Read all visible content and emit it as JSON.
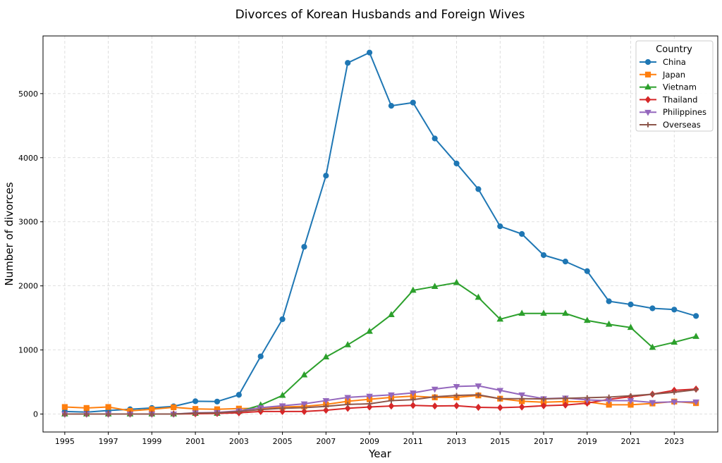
{
  "chart_data": {
    "type": "line",
    "title": "Divorces of Korean Husbands and Foreign Wives",
    "xlabel": "Year",
    "ylabel": "Number of divorces",
    "xlim": [
      1994,
      2025
    ],
    "ylim": [
      -280,
      5900
    ],
    "x_ticks": [
      1995,
      1997,
      1999,
      2001,
      2003,
      2005,
      2007,
      2009,
      2011,
      2013,
      2015,
      2017,
      2019,
      2021,
      2023
    ],
    "y_ticks": [
      0,
      1000,
      2000,
      3000,
      4000,
      5000
    ],
    "grid": true,
    "legend": {
      "title": "Country",
      "placement": "top-right"
    },
    "x": [
      1995,
      1996,
      1997,
      1998,
      1999,
      2000,
      2001,
      2002,
      2003,
      2004,
      2005,
      2006,
      2007,
      2008,
      2009,
      2010,
      2011,
      2012,
      2013,
      2014,
      2015,
      2016,
      2017,
      2018,
      2019,
      2020,
      2021,
      2022,
      2023,
      2024
    ],
    "series": [
      {
        "name": "China",
        "color": "#1f77b4",
        "marker": "circle",
        "values": [
          40,
          30,
          55,
          75,
          95,
          120,
          200,
          195,
          300,
          900,
          1480,
          2610,
          3720,
          5480,
          5640,
          4810,
          4860,
          4300,
          3910,
          3510,
          2930,
          2810,
          2480,
          2380,
          2230,
          1760,
          1710,
          1650,
          1630,
          1530
        ]
      },
      {
        "name": "Japan",
        "color": "#ff7f0e",
        "marker": "square",
        "values": [
          110,
          95,
          110,
          50,
          75,
          105,
          80,
          75,
          85,
          90,
          110,
          120,
          150,
          200,
          230,
          260,
          280,
          260,
          260,
          290,
          240,
          200,
          185,
          195,
          190,
          145,
          145,
          165,
          195,
          170
        ]
      },
      {
        "name": "Vietnam",
        "color": "#2ca02c",
        "marker": "triangle-up",
        "values": [
          0,
          0,
          0,
          0,
          0,
          0,
          10,
          10,
          40,
          140,
          290,
          610,
          890,
          1080,
          1290,
          1550,
          1930,
          1990,
          2050,
          1820,
          1480,
          1570,
          1570,
          1570,
          1460,
          1400,
          1350,
          1040,
          1120,
          1210
        ]
      },
      {
        "name": "Thailand",
        "color": "#d62728",
        "marker": "diamond",
        "values": [
          0,
          0,
          0,
          0,
          0,
          0,
          5,
          10,
          20,
          40,
          40,
          40,
          60,
          90,
          110,
          125,
          135,
          125,
          130,
          105,
          100,
          110,
          130,
          140,
          170,
          230,
          270,
          310,
          370,
          390
        ]
      },
      {
        "name": "Philippines",
        "color": "#9467bd",
        "marker": "triangle-down",
        "values": [
          0,
          0,
          0,
          0,
          0,
          0,
          20,
          25,
          50,
          100,
          130,
          160,
          210,
          260,
          280,
          300,
          330,
          390,
          430,
          440,
          370,
          300,
          240,
          250,
          220,
          210,
          210,
          180,
          190,
          190
        ]
      },
      {
        "name": "Overseas",
        "color": "#8c564b",
        "marker": "plus",
        "values": [
          0,
          0,
          0,
          0,
          0,
          0,
          15,
          20,
          40,
          70,
          90,
          100,
          120,
          150,
          160,
          210,
          225,
          270,
          290,
          300,
          240,
          240,
          235,
          245,
          255,
          265,
          285,
          310,
          340,
          380
        ]
      }
    ]
  }
}
